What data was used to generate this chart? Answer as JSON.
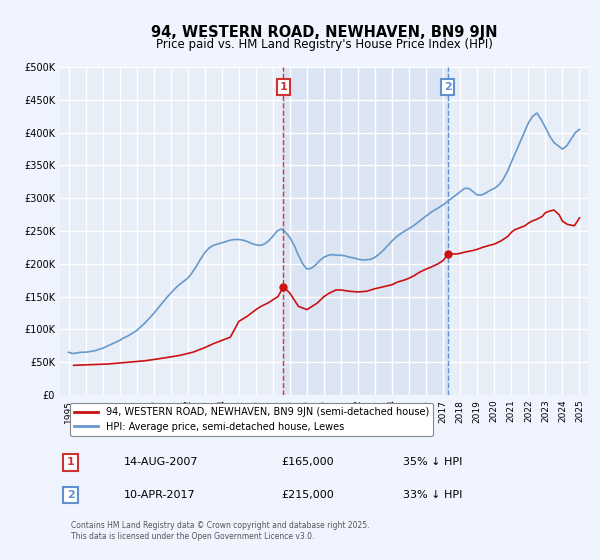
{
  "title": "94, WESTERN ROAD, NEWHAVEN, BN9 9JN",
  "subtitle": "Price paid vs. HM Land Registry's House Price Index (HPI)",
  "background_color": "#f0f4ff",
  "plot_bg_color": "#e8eef8",
  "grid_color": "#ffffff",
  "red_label": "94, WESTERN ROAD, NEWHAVEN, BN9 9JN (semi-detached house)",
  "blue_label": "HPI: Average price, semi-detached house, Lewes",
  "annotation1_date": "14-AUG-2007",
  "annotation1_price": "£165,000",
  "annotation1_hpi": "35% ↓ HPI",
  "annotation2_date": "10-APR-2017",
  "annotation2_price": "£215,000",
  "annotation2_hpi": "33% ↓ HPI",
  "vline1_x": 2007.62,
  "vline2_x": 2017.27,
  "footer": "Contains HM Land Registry data © Crown copyright and database right 2025.\nThis data is licensed under the Open Government Licence v3.0.",
  "ylim": [
    0,
    500000
  ],
  "xlim": [
    1994.5,
    2025.5
  ],
  "yticks": [
    0,
    50000,
    100000,
    150000,
    200000,
    250000,
    300000,
    350000,
    400000,
    450000,
    500000
  ],
  "xticks": [
    1995,
    1996,
    1997,
    1998,
    1999,
    2000,
    2001,
    2002,
    2003,
    2004,
    2005,
    2006,
    2007,
    2008,
    2009,
    2010,
    2011,
    2012,
    2013,
    2014,
    2015,
    2016,
    2017,
    2018,
    2019,
    2020,
    2021,
    2022,
    2023,
    2024,
    2025
  ],
  "hpi_x": [
    1995.0,
    1995.25,
    1995.5,
    1995.75,
    1996.0,
    1996.25,
    1996.5,
    1996.75,
    1997.0,
    1997.25,
    1997.5,
    1997.75,
    1998.0,
    1998.25,
    1998.5,
    1998.75,
    1999.0,
    1999.25,
    1999.5,
    1999.75,
    2000.0,
    2000.25,
    2000.5,
    2000.75,
    2001.0,
    2001.25,
    2001.5,
    2001.75,
    2002.0,
    2002.25,
    2002.5,
    2002.75,
    2003.0,
    2003.25,
    2003.5,
    2003.75,
    2004.0,
    2004.25,
    2004.5,
    2004.75,
    2005.0,
    2005.25,
    2005.5,
    2005.75,
    2006.0,
    2006.25,
    2006.5,
    2006.75,
    2007.0,
    2007.25,
    2007.5,
    2007.75,
    2008.0,
    2008.25,
    2008.5,
    2008.75,
    2009.0,
    2009.25,
    2009.5,
    2009.75,
    2010.0,
    2010.25,
    2010.5,
    2010.75,
    2011.0,
    2011.25,
    2011.5,
    2011.75,
    2012.0,
    2012.25,
    2012.5,
    2012.75,
    2013.0,
    2013.25,
    2013.5,
    2013.75,
    2014.0,
    2014.25,
    2014.5,
    2014.75,
    2015.0,
    2015.25,
    2015.5,
    2015.75,
    2016.0,
    2016.25,
    2016.5,
    2016.75,
    2017.0,
    2017.25,
    2017.5,
    2017.75,
    2018.0,
    2018.25,
    2018.5,
    2018.75,
    2019.0,
    2019.25,
    2019.5,
    2019.75,
    2020.0,
    2020.25,
    2020.5,
    2020.75,
    2021.0,
    2021.25,
    2021.5,
    2021.75,
    2022.0,
    2022.25,
    2022.5,
    2022.75,
    2023.0,
    2023.25,
    2023.5,
    2023.75,
    2024.0,
    2024.25,
    2024.5,
    2024.75,
    2025.0
  ],
  "hpi_y": [
    65000,
    63000,
    64000,
    65000,
    65000,
    66000,
    67000,
    69000,
    71000,
    74000,
    77000,
    80000,
    83000,
    87000,
    90000,
    94000,
    98000,
    104000,
    110000,
    117000,
    124000,
    132000,
    140000,
    148000,
    155000,
    162000,
    168000,
    173000,
    178000,
    186000,
    196000,
    207000,
    217000,
    224000,
    228000,
    230000,
    232000,
    234000,
    236000,
    237000,
    237000,
    236000,
    234000,
    231000,
    229000,
    228000,
    230000,
    235000,
    242000,
    250000,
    253000,
    248000,
    240000,
    228000,
    213000,
    200000,
    192000,
    193000,
    198000,
    205000,
    210000,
    213000,
    214000,
    213000,
    213000,
    212000,
    210000,
    209000,
    207000,
    206000,
    206000,
    207000,
    210000,
    215000,
    221000,
    228000,
    235000,
    241000,
    246000,
    250000,
    254000,
    258000,
    263000,
    268000,
    273000,
    278000,
    282000,
    286000,
    290000,
    295000,
    300000,
    305000,
    310000,
    315000,
    315000,
    310000,
    305000,
    305000,
    308000,
    312000,
    315000,
    320000,
    328000,
    340000,
    355000,
    370000,
    385000,
    400000,
    415000,
    425000,
    430000,
    420000,
    408000,
    395000,
    385000,
    380000,
    375000,
    380000,
    390000,
    400000,
    405000
  ],
  "red_x": [
    1995.3,
    1997.3,
    1999.5,
    2000.3,
    2001.5,
    2002.3,
    2003.0,
    2003.5,
    2004.0,
    2004.5,
    2005.0,
    2005.5,
    2006.0,
    2006.3,
    2006.7,
    2007.0,
    2007.3,
    2007.62,
    2008.0,
    2008.5,
    2009.0,
    2009.3,
    2009.6,
    2010.0,
    2010.3,
    2010.7,
    2011.0,
    2011.5,
    2012.0,
    2012.5,
    2013.0,
    2013.5,
    2014.0,
    2014.3,
    2014.7,
    2015.0,
    2015.3,
    2015.6,
    2016.0,
    2016.3,
    2016.7,
    2017.0,
    2017.27,
    2017.5,
    2017.8,
    2018.0,
    2018.3,
    2018.7,
    2019.0,
    2019.3,
    2019.7,
    2020.0,
    2020.4,
    2020.8,
    2021.0,
    2021.2,
    2021.5,
    2021.8,
    2022.0,
    2022.2,
    2022.5,
    2022.8,
    2023.0,
    2023.2,
    2023.5,
    2023.8,
    2024.0,
    2024.3,
    2024.7,
    2025.0
  ],
  "red_y": [
    45000,
    47000,
    52000,
    55000,
    60000,
    65000,
    72000,
    78000,
    83000,
    88000,
    112000,
    120000,
    130000,
    135000,
    140000,
    145000,
    150000,
    165000,
    155000,
    135000,
    130000,
    135000,
    140000,
    150000,
    155000,
    160000,
    160000,
    158000,
    157000,
    158000,
    162000,
    165000,
    168000,
    172000,
    175000,
    178000,
    182000,
    187000,
    192000,
    195000,
    200000,
    205000,
    215000,
    215000,
    215000,
    216000,
    218000,
    220000,
    222000,
    225000,
    228000,
    230000,
    235000,
    242000,
    248000,
    252000,
    255000,
    258000,
    262000,
    265000,
    268000,
    272000,
    278000,
    280000,
    282000,
    275000,
    265000,
    260000,
    258000,
    270000
  ]
}
